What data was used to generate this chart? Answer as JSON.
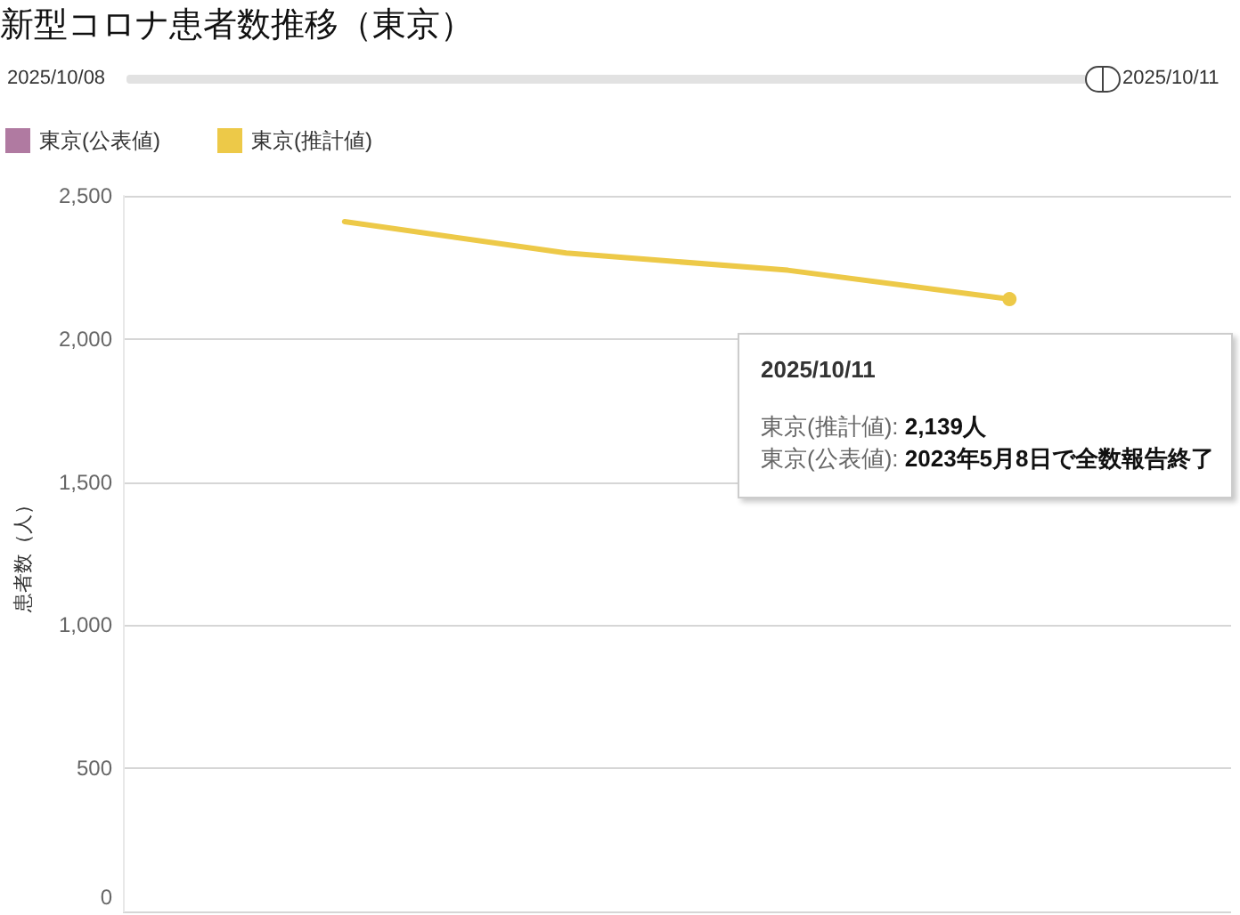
{
  "chart_data": {
    "type": "line",
    "title": "新型コロナ患者数推移（東京）",
    "ylabel": "患者数（人）",
    "categories": [
      null,
      null,
      null,
      null,
      null,
      null
    ],
    "series": [
      {
        "name": "東京(公表値)",
        "color": "#b07aa1",
        "values": [
          null,
          null,
          null,
          null,
          null,
          null
        ]
      },
      {
        "name": "東京(推計値)",
        "color": "#edc948",
        "values": [
          null,
          2410,
          2300,
          2240,
          2139,
          null
        ]
      }
    ],
    "ylim": [
      0,
      2500
    ],
    "yticks": [
      0,
      500,
      {
        "value": 1000,
        "label": "1,000"
      },
      {
        "value": 1500,
        "label": "1,500"
      },
      {
        "value": 2000,
        "label": "2,000"
      },
      {
        "value": 2500,
        "label": "2,500"
      }
    ],
    "grid": "y",
    "legend": "top left",
    "marker": "none",
    "tick_labels": "y",
    "annotations": [
      "2025/10/08",
      "2025/10/11",
      "2025/10/11",
      "東京(推計値): 2,139人",
      "東京(公表値): 2023年5月8日で全数報告終了"
    ]
  }
}
